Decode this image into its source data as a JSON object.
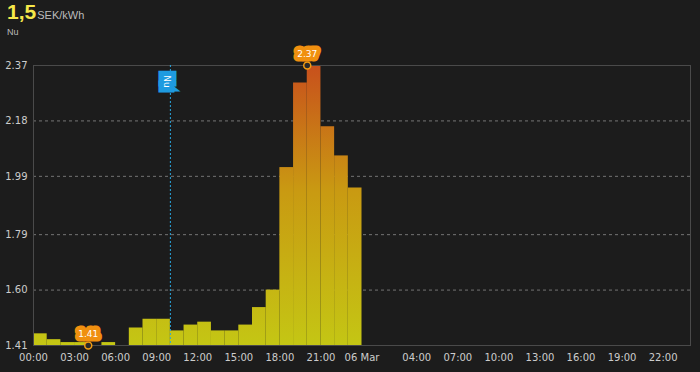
{
  "chart_data": {
    "type": "area",
    "title": "1,5",
    "unit": "SEK/kWh",
    "subtitle": "Nu",
    "x": [
      0,
      1,
      2,
      3,
      4,
      5,
      6,
      7,
      8,
      9,
      10,
      11,
      12,
      13,
      14,
      15,
      16,
      17,
      18,
      19,
      20,
      21,
      22,
      23
    ],
    "values": [
      1.45,
      1.43,
      1.42,
      1.42,
      1.41,
      1.42,
      1.41,
      1.47,
      1.5,
      1.5,
      1.46,
      1.48,
      1.49,
      1.46,
      1.46,
      1.48,
      1.54,
      1.6,
      2.02,
      2.31,
      2.37,
      2.16,
      2.06,
      1.95
    ],
    "xlim": [
      0,
      48
    ],
    "xticks": [
      {
        "value": 0,
        "label": "00:00"
      },
      {
        "value": 3,
        "label": "03:00"
      },
      {
        "value": 6,
        "label": "06:00"
      },
      {
        "value": 9,
        "label": "09:00"
      },
      {
        "value": 12,
        "label": "12:00"
      },
      {
        "value": 15,
        "label": "15:00"
      },
      {
        "value": 18,
        "label": "18:00"
      },
      {
        "value": 21,
        "label": "21:00"
      },
      {
        "value": 24,
        "label": "06 Mar"
      },
      {
        "value": 28,
        "label": "04:00"
      },
      {
        "value": 31,
        "label": "07:00"
      },
      {
        "value": 34,
        "label": "10:00"
      },
      {
        "value": 37,
        "label": "13:00"
      },
      {
        "value": 40,
        "label": "16:00"
      },
      {
        "value": 43,
        "label": "19:00"
      },
      {
        "value": 46,
        "label": "22:00"
      }
    ],
    "ylim": [
      1.41,
      2.37
    ],
    "yticks": [
      1.41,
      {
        "value": 1.6,
        "label": "1.60"
      },
      1.79,
      1.99,
      2.18,
      2.37
    ],
    "grid": true,
    "annotations": [
      {
        "x": 4,
        "y": 1.41,
        "label": "1.41"
      },
      {
        "x": 20,
        "y": 2.37,
        "label": "2.37"
      },
      {
        "x": 10,
        "label": "Nu"
      }
    ]
  }
}
